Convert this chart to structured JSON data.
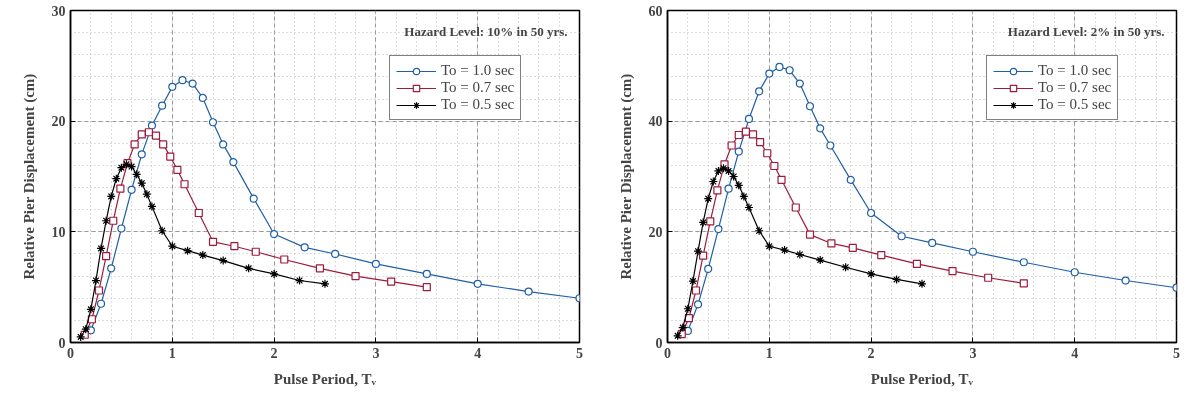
{
  "chart_data": [
    {
      "type": "line",
      "annotations": [
        "Hazard Level: 10% in 50 yrs."
      ],
      "xlabel": "Pulse Period, Tᵥ",
      "ylabel": "Relative Pier Displacement (cm)",
      "xlim": [
        0,
        5
      ],
      "ylim": [
        0,
        30
      ],
      "xticks": [
        0,
        1,
        2,
        3,
        4,
        5
      ],
      "yticks": [
        0,
        10,
        20,
        30
      ],
      "grid": true,
      "legend": "top right",
      "line_style": "solid",
      "series": [
        {
          "name": "To = 1.0 sec",
          "color": "#1f5fa6",
          "marker": "circle",
          "x": [
            0.2,
            0.3,
            0.4,
            0.5,
            0.6,
            0.7,
            0.8,
            0.9,
            1.0,
            1.1,
            1.2,
            1.3,
            1.4,
            1.5,
            1.6,
            1.8,
            2.0,
            2.3,
            2.6,
            3.0,
            3.5,
            4.0,
            4.5,
            5.0
          ],
          "values": [
            1.1,
            3.5,
            6.7,
            10.3,
            13.8,
            17.0,
            19.6,
            21.4,
            23.1,
            23.7,
            23.4,
            22.1,
            19.9,
            17.9,
            16.3,
            13.0,
            9.8,
            8.6,
            8.0,
            7.1,
            6.2,
            5.3,
            4.6,
            4.0
          ]
        },
        {
          "name": "To = 0.7 sec",
          "color": "#9e1b3c",
          "marker": "square",
          "x": [
            0.14,
            0.21,
            0.28,
            0.35,
            0.42,
            0.49,
            0.56,
            0.63,
            0.7,
            0.77,
            0.84,
            0.91,
            0.98,
            1.05,
            1.12,
            1.26,
            1.4,
            1.61,
            1.82,
            2.1,
            2.45,
            2.8,
            3.15,
            3.5
          ],
          "values": [
            0.7,
            2.1,
            4.7,
            7.8,
            11.0,
            13.9,
            16.2,
            17.9,
            18.8,
            19.0,
            18.7,
            17.9,
            16.8,
            15.6,
            14.3,
            11.7,
            9.1,
            8.7,
            8.2,
            7.5,
            6.7,
            6.0,
            5.5,
            5.0
          ]
        },
        {
          "name": "To = 0.5 sec",
          "color": "#000000",
          "marker": "cross",
          "x": [
            0.1,
            0.15,
            0.2,
            0.25,
            0.3,
            0.35,
            0.4,
            0.45,
            0.5,
            0.55,
            0.6,
            0.65,
            0.7,
            0.75,
            0.8,
            0.9,
            1.0,
            1.15,
            1.3,
            1.5,
            1.75,
            2.0,
            2.25,
            2.5
          ],
          "values": [
            0.5,
            1.2,
            3.0,
            5.6,
            8.5,
            11.0,
            13.2,
            14.8,
            15.8,
            16.1,
            15.9,
            15.2,
            14.4,
            13.4,
            12.3,
            10.1,
            8.7,
            8.3,
            7.9,
            7.4,
            6.7,
            6.2,
            5.6,
            5.3
          ]
        }
      ]
    },
    {
      "type": "line",
      "annotations": [
        "Hazard Level: 2% in 50 yrs."
      ],
      "xlabel": "Pulse Period, Tᵥ",
      "ylabel": "Relative Pier Displacement (cm)",
      "xlim": [
        0,
        5
      ],
      "ylim": [
        0,
        60
      ],
      "xticks": [
        0,
        1,
        2,
        3,
        4,
        5
      ],
      "yticks": [
        0,
        20,
        40,
        60
      ],
      "grid": true,
      "legend": "top right",
      "line_style": "solid",
      "series": [
        {
          "name": "To = 1.0 sec",
          "color": "#1f5fa6",
          "marker": "circle",
          "x": [
            0.2,
            0.3,
            0.4,
            0.5,
            0.6,
            0.7,
            0.8,
            0.9,
            1.0,
            1.1,
            1.2,
            1.3,
            1.4,
            1.5,
            1.6,
            1.8,
            2.0,
            2.3,
            2.6,
            3.0,
            3.5,
            4.0,
            4.5,
            5.0
          ],
          "values": [
            2.1,
            6.9,
            13.3,
            20.5,
            27.8,
            34.5,
            40.4,
            45.4,
            48.6,
            49.8,
            49.2,
            46.8,
            42.7,
            38.7,
            35.6,
            29.4,
            23.4,
            19.2,
            18.0,
            16.4,
            14.5,
            12.7,
            11.2,
            9.9
          ]
        },
        {
          "name": "To = 0.7 sec",
          "color": "#9e1b3c",
          "marker": "square",
          "x": [
            0.14,
            0.21,
            0.28,
            0.35,
            0.42,
            0.49,
            0.56,
            0.63,
            0.7,
            0.77,
            0.84,
            0.91,
            0.98,
            1.05,
            1.12,
            1.26,
            1.4,
            1.61,
            1.82,
            2.1,
            2.45,
            2.8,
            3.15,
            3.5
          ],
          "values": [
            1.5,
            4.4,
            9.4,
            15.7,
            21.9,
            27.5,
            32.2,
            35.6,
            37.5,
            38.1,
            37.6,
            36.2,
            34.2,
            31.9,
            29.4,
            24.4,
            19.5,
            17.9,
            17.1,
            15.8,
            14.2,
            12.9,
            11.7,
            10.7
          ]
        },
        {
          "name": "To = 0.5 sec",
          "color": "#000000",
          "marker": "cross",
          "x": [
            0.1,
            0.15,
            0.2,
            0.25,
            0.3,
            0.35,
            0.4,
            0.45,
            0.5,
            0.55,
            0.6,
            0.65,
            0.7,
            0.75,
            0.8,
            0.9,
            1.0,
            1.15,
            1.3,
            1.5,
            1.75,
            2.0,
            2.25,
            2.5
          ],
          "values": [
            1.2,
            2.7,
            6.1,
            11.1,
            16.5,
            21.7,
            26.0,
            29.1,
            31.0,
            31.5,
            31.0,
            30.0,
            28.4,
            26.4,
            24.4,
            20.2,
            17.4,
            16.7,
            15.9,
            14.9,
            13.6,
            12.4,
            11.4,
            10.6
          ]
        }
      ]
    }
  ]
}
